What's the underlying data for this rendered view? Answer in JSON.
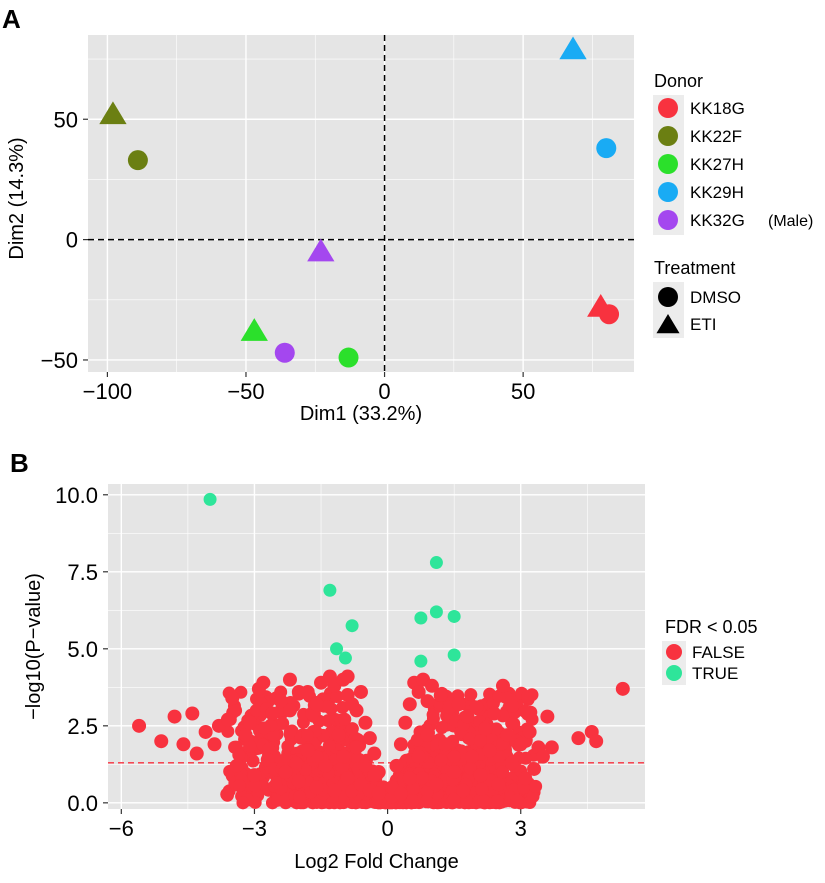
{
  "figure": {
    "panel_a_label": "A",
    "panel_b_label": "B"
  },
  "chart_data": [
    {
      "type": "scatter",
      "panel": "A",
      "title": "",
      "xlabel": "Dim1 (33.2%)",
      "ylabel": "Dim2 (14.3%)",
      "xlim": [
        -107,
        90
      ],
      "ylim": [
        -55,
        85
      ],
      "xticks": [
        -100,
        -50,
        0,
        50
      ],
      "xtick_labels": [
        "−100",
        "−50",
        "0",
        "50"
      ],
      "yticks": [
        -50,
        0,
        50
      ],
      "ytick_labels": [
        "−50",
        "0",
        "50"
      ],
      "grid": true,
      "reference_lines": {
        "x": 0,
        "y": 0,
        "style": "dashed"
      },
      "points": [
        {
          "donor": "KK22F",
          "treatment": "ETI",
          "x": -98,
          "y": 52
        },
        {
          "donor": "KK22F",
          "treatment": "DMSO",
          "x": -89,
          "y": 33
        },
        {
          "donor": "KK27H",
          "treatment": "ETI",
          "x": -47,
          "y": -38
        },
        {
          "donor": "KK32G",
          "treatment": "DMSO",
          "x": -36,
          "y": -47
        },
        {
          "donor": "KK32G",
          "treatment": "ETI",
          "x": -23,
          "y": -5
        },
        {
          "donor": "KK27H",
          "treatment": "DMSO",
          "x": -13,
          "y": -49
        },
        {
          "donor": "KK29H",
          "treatment": "ETI",
          "x": 68,
          "y": 79
        },
        {
          "donor": "KK29H",
          "treatment": "DMSO",
          "x": 80,
          "y": 38
        },
        {
          "donor": "KK18G",
          "treatment": "ETI",
          "x": 78,
          "y": -28
        },
        {
          "donor": "KK18G",
          "treatment": "DMSO",
          "x": 81,
          "y": -31
        }
      ],
      "legend": {
        "placement": "right",
        "donor_title": "Donor",
        "donors": [
          {
            "name": "KK18G",
            "color": "#f8323f"
          },
          {
            "name": "KK22F",
            "color": "#6b7f12"
          },
          {
            "name": "KK27H",
            "color": "#2be02b"
          },
          {
            "name": "KK29H",
            "color": "#19abf4"
          },
          {
            "name": "KK32G",
            "color": "#a447ef",
            "note": "(Male)"
          }
        ],
        "treatment_title": "Treatment",
        "treatments": [
          {
            "name": "DMSO",
            "shape": "circle"
          },
          {
            "name": "ETI",
            "shape": "triangle"
          }
        ]
      }
    },
    {
      "type": "scatter",
      "panel": "B",
      "subtype": "volcano",
      "title": "",
      "xlabel": "Log2 Fold Change",
      "ylabel": "−log10(P−value)",
      "xlim": [
        -6.3,
        5.8
      ],
      "ylim": [
        -0.2,
        10.35
      ],
      "xticks": [
        -6,
        -3,
        0,
        3
      ],
      "xtick_labels": [
        "−6",
        "−3",
        "0",
        "3"
      ],
      "yticks": [
        0,
        2.5,
        5,
        7.5,
        10
      ],
      "ytick_labels": [
        "0.0",
        "2.5",
        "5.0",
        "7.5",
        "10.0"
      ],
      "grid": true,
      "threshold_line": {
        "y": 1.3,
        "color": "#f8323f",
        "style": "dashed"
      },
      "series": [
        {
          "name": "FALSE",
          "color": "#f8323f",
          "points": [
            [
              -5.6,
              2.5
            ],
            [
              -5.1,
              2.0
            ],
            [
              -4.8,
              2.8
            ],
            [
              -4.6,
              1.9
            ],
            [
              -4.4,
              2.9
            ],
            [
              -4.3,
              1.6
            ],
            [
              -4.1,
              2.3
            ],
            [
              -3.9,
              1.9
            ],
            [
              -3.8,
              2.5
            ],
            [
              -3.6,
              2.7
            ],
            [
              -3.5,
              3.4
            ],
            [
              -3.2,
              2.2
            ],
            [
              -3.1,
              2.6
            ],
            [
              -2.9,
              3.7
            ],
            [
              -2.8,
              3.9
            ],
            [
              -2.6,
              2.9
            ],
            [
              -2.5,
              3.4
            ],
            [
              -2.4,
              3.3
            ],
            [
              -2.2,
              3.0
            ],
            [
              -2.2,
              4.0
            ],
            [
              -2.0,
              3.6
            ],
            [
              -1.8,
              3.6
            ],
            [
              -1.7,
              2.9
            ],
            [
              -1.6,
              3.2
            ],
            [
              -1.5,
              3.9
            ],
            [
              -1.3,
              4.1
            ],
            [
              -1.2,
              3.8
            ],
            [
              -1.0,
              4.0
            ],
            [
              -0.9,
              4.1
            ],
            [
              -0.9,
              3.5
            ],
            [
              -0.8,
              3.2
            ],
            [
              -0.7,
              3.0
            ],
            [
              -0.6,
              3.6
            ],
            [
              -0.5,
              2.6
            ],
            [
              -0.4,
              2.1
            ],
            [
              -0.3,
              1.6
            ],
            [
              -0.2,
              1.0
            ],
            [
              -0.1,
              0.5
            ],
            [
              -3.4,
              1.2
            ],
            [
              -3.0,
              0.9
            ],
            [
              -2.7,
              1.4
            ],
            [
              -2.3,
              1.0
            ],
            [
              -2.0,
              0.7
            ],
            [
              -1.8,
              1.7
            ],
            [
              -1.6,
              0.5
            ],
            [
              -1.4,
              1.2
            ],
            [
              -1.2,
              0.4
            ],
            [
              -1.1,
              2.2
            ],
            [
              -1.0,
              1.5
            ],
            [
              -0.9,
              0.8
            ],
            [
              -0.7,
              1.8
            ],
            [
              -0.6,
              0.6
            ],
            [
              -0.5,
              1.2
            ],
            [
              -0.4,
              0.4
            ],
            [
              -0.3,
              0.9
            ],
            [
              -0.2,
              0.3
            ],
            [
              0.1,
              0.5
            ],
            [
              0.2,
              1.2
            ],
            [
              0.3,
              1.9
            ],
            [
              0.4,
              2.6
            ],
            [
              0.5,
              3.2
            ],
            [
              0.6,
              3.9
            ],
            [
              0.7,
              3.6
            ],
            [
              0.8,
              4.0
            ],
            [
              0.9,
              3.3
            ],
            [
              1.0,
              3.8
            ],
            [
              1.2,
              3.5
            ],
            [
              1.4,
              3.1
            ],
            [
              1.6,
              3.2
            ],
            [
              1.8,
              2.8
            ],
            [
              2.0,
              3.1
            ],
            [
              2.2,
              2.4
            ],
            [
              2.4,
              2.9
            ],
            [
              2.6,
              3.8
            ],
            [
              2.7,
              2.2
            ],
            [
              2.9,
              2.0
            ],
            [
              3.0,
              1.9
            ],
            [
              3.2,
              2.3
            ],
            [
              3.4,
              1.8
            ],
            [
              3.6,
              2.8
            ],
            [
              3.7,
              1.8
            ],
            [
              4.3,
              2.1
            ],
            [
              4.6,
              2.3
            ],
            [
              4.7,
              2.0
            ],
            [
              5.3,
              3.7
            ],
            [
              0.3,
              0.3
            ],
            [
              0.5,
              0.8
            ],
            [
              0.7,
              1.5
            ],
            [
              0.9,
              2.2
            ],
            [
              1.1,
              0.6
            ],
            [
              1.3,
              1.9
            ],
            [
              1.5,
              1.0
            ],
            [
              1.7,
              0.4
            ],
            [
              1.9,
              1.5
            ],
            [
              2.1,
              0.9
            ],
            [
              2.3,
              1.7
            ],
            [
              2.5,
              0.6
            ],
            [
              2.8,
              1.3
            ],
            [
              3.1,
              0.8
            ],
            [
              3.3,
              1.1
            ],
            [
              3.5,
              1.5
            ]
          ]
        },
        {
          "name": "TRUE",
          "color": "#2ee59a",
          "points": [
            [
              -4.0,
              9.85
            ],
            [
              -1.3,
              6.9
            ],
            [
              -0.8,
              5.75
            ],
            [
              -1.15,
              5.0
            ],
            [
              -0.95,
              4.7
            ],
            [
              1.1,
              7.8
            ],
            [
              1.1,
              6.2
            ],
            [
              0.75,
              6.0
            ],
            [
              1.5,
              6.05
            ],
            [
              1.5,
              4.8
            ],
            [
              0.75,
              4.6
            ]
          ]
        }
      ],
      "legend": {
        "placement": "right",
        "title": "FDR < 0.05",
        "entries": [
          "FALSE",
          "TRUE"
        ]
      }
    }
  ]
}
